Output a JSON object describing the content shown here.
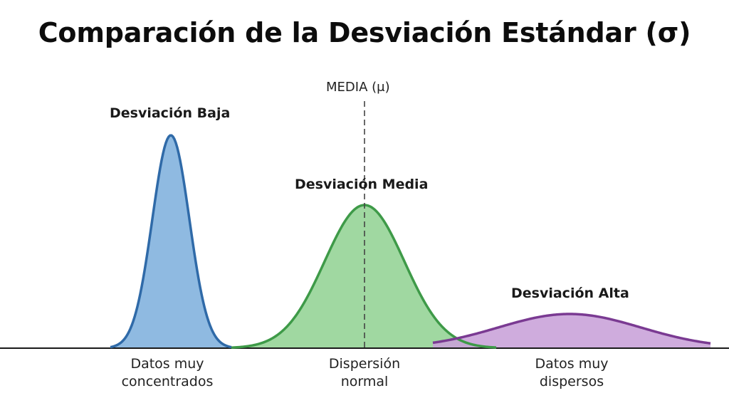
{
  "title": "Comparación de la Desviación Estándar (σ)",
  "mean_label": "MEDIA (μ)",
  "curves": [
    {
      "key": "low",
      "label": "Desviación Baja",
      "caption_line1": "Datos muy",
      "caption_line2": "concentrados",
      "fill": "#7fb0dd",
      "stroke": "#2f6aa8"
    },
    {
      "key": "medium",
      "label": "Desviación Media",
      "caption_line1": "Dispersión",
      "caption_line2": "normal",
      "fill": "#93d394",
      "stroke": "#3e9a48"
    },
    {
      "key": "high",
      "label": "Desviación Alta",
      "caption_line1": "Datos muy",
      "caption_line2": "dispersos",
      "fill": "#c8a1d8",
      "stroke": "#7a3a92"
    }
  ]
}
